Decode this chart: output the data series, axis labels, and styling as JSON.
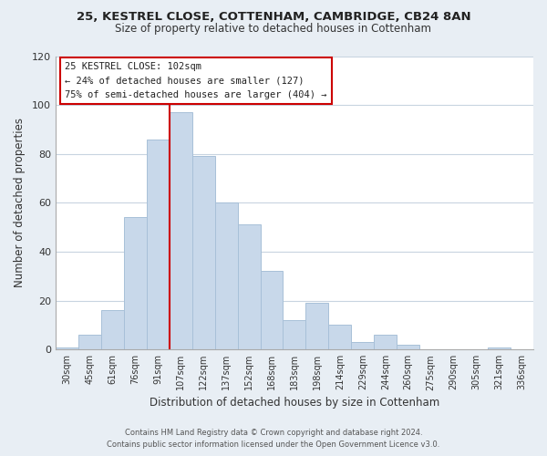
{
  "title": "25, KESTREL CLOSE, COTTENHAM, CAMBRIDGE, CB24 8AN",
  "subtitle": "Size of property relative to detached houses in Cottenham",
  "xlabel": "Distribution of detached houses by size in Cottenham",
  "ylabel": "Number of detached properties",
  "footer_line1": "Contains HM Land Registry data © Crown copyright and database right 2024.",
  "footer_line2": "Contains public sector information licensed under the Open Government Licence v3.0.",
  "bin_labels": [
    "30sqm",
    "45sqm",
    "61sqm",
    "76sqm",
    "91sqm",
    "107sqm",
    "122sqm",
    "137sqm",
    "152sqm",
    "168sqm",
    "183sqm",
    "198sqm",
    "214sqm",
    "229sqm",
    "244sqm",
    "260sqm",
    "275sqm",
    "290sqm",
    "305sqm",
    "321sqm",
    "336sqm"
  ],
  "bar_heights": [
    1,
    6,
    16,
    54,
    86,
    97,
    79,
    60,
    51,
    32,
    12,
    19,
    10,
    3,
    6,
    2,
    0,
    0,
    0,
    1,
    0
  ],
  "bar_color": "#c8d8ea",
  "bar_edge_color": "#a8c0d8",
  "marker_line_color": "#cc0000",
  "annotation_line1": "25 KESTREL CLOSE: 102sqm",
  "annotation_line2": "← 24% of detached houses are smaller (127)",
  "annotation_line3": "75% of semi-detached houses are larger (404) →",
  "annotation_box_color": "#ffffff",
  "annotation_box_edge": "#cc0000",
  "ylim": [
    0,
    120
  ],
  "yticks": [
    0,
    20,
    40,
    60,
    80,
    100,
    120
  ],
  "bg_color": "#e8eef4",
  "plot_bg_color": "#ffffff",
  "grid_color": "#c8d4e0"
}
